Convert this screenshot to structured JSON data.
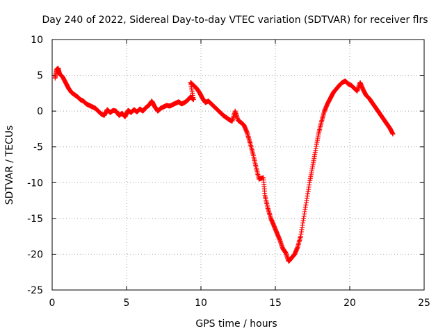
{
  "chart_data": {
    "type": "scatter",
    "title": "Day 240 of 2022, Sidereal Day-to-day VTEC variation (SDTVAR) for receiver flrs",
    "xlabel": "GPS time / hours",
    "ylabel": "SDTVAR / TECUs",
    "xlim": [
      0,
      25
    ],
    "ylim": [
      -25,
      10
    ],
    "x_ticks": [
      0,
      5,
      10,
      15,
      20,
      25
    ],
    "y_ticks": [
      -25,
      -20,
      -15,
      -10,
      -5,
      0,
      5,
      10
    ],
    "x_tick_labels": [
      "0",
      "5",
      "10",
      "15",
      "20",
      "25"
    ],
    "y_tick_labels": [
      "-25",
      "-20",
      "-15",
      "-10",
      "-5",
      "0",
      "5",
      "10"
    ],
    "grid": true,
    "marker": "plus",
    "color": "#ff0000",
    "series": [
      {
        "name": "flrs",
        "points": [
          [
            0.2,
            4.6
          ],
          [
            0.3,
            5.8
          ],
          [
            0.4,
            6.0
          ],
          [
            0.5,
            5.2
          ],
          [
            0.7,
            4.8
          ],
          [
            0.9,
            4.0
          ],
          [
            1.1,
            3.2
          ],
          [
            1.3,
            2.6
          ],
          [
            1.5,
            2.3
          ],
          [
            1.7,
            2.0
          ],
          [
            1.9,
            1.6
          ],
          [
            2.1,
            1.4
          ],
          [
            2.3,
            1.0
          ],
          [
            2.5,
            0.8
          ],
          [
            2.7,
            0.6
          ],
          [
            2.9,
            0.4
          ],
          [
            3.1,
            0.0
          ],
          [
            3.3,
            -0.4
          ],
          [
            3.5,
            -0.6
          ],
          [
            3.7,
            0.2
          ],
          [
            3.9,
            -0.2
          ],
          [
            4.1,
            0.1
          ],
          [
            4.3,
            0.0
          ],
          [
            4.5,
            -0.6
          ],
          [
            4.7,
            -0.3
          ],
          [
            4.9,
            -0.8
          ],
          [
            5.1,
            0.1
          ],
          [
            5.3,
            -0.2
          ],
          [
            5.5,
            0.2
          ],
          [
            5.7,
            -0.1
          ],
          [
            5.9,
            0.3
          ],
          [
            6.1,
            0.0
          ],
          [
            6.3,
            0.5
          ],
          [
            6.5,
            0.8
          ],
          [
            6.7,
            1.4
          ],
          [
            6.9,
            0.6
          ],
          [
            7.1,
            0.0
          ],
          [
            7.3,
            0.4
          ],
          [
            7.5,
            0.6
          ],
          [
            7.7,
            0.8
          ],
          [
            7.9,
            0.7
          ],
          [
            8.1,
            0.9
          ],
          [
            8.3,
            1.1
          ],
          [
            8.5,
            1.3
          ],
          [
            8.7,
            1.0
          ],
          [
            8.9,
            1.2
          ],
          [
            9.1,
            1.5
          ],
          [
            9.3,
            2.0
          ],
          [
            9.5,
            1.6
          ],
          [
            9.3,
            4.0
          ],
          [
            9.5,
            3.6
          ],
          [
            9.7,
            3.2
          ],
          [
            9.9,
            2.6
          ],
          [
            10.1,
            1.8
          ],
          [
            10.3,
            1.2
          ],
          [
            10.5,
            1.4
          ],
          [
            10.7,
            1.0
          ],
          [
            10.9,
            0.6
          ],
          [
            11.1,
            0.2
          ],
          [
            11.3,
            -0.2
          ],
          [
            11.5,
            -0.6
          ],
          [
            11.7,
            -0.9
          ],
          [
            11.9,
            -1.2
          ],
          [
            12.1,
            -1.4
          ],
          [
            12.3,
            0.0
          ],
          [
            12.5,
            -1.3
          ],
          [
            12.7,
            -1.6
          ],
          [
            12.9,
            -2.0
          ],
          [
            13.1,
            -3.0
          ],
          [
            13.3,
            -4.4
          ],
          [
            13.5,
            -6.0
          ],
          [
            13.7,
            -7.8
          ],
          [
            13.9,
            -9.5
          ],
          [
            14.2,
            -9.3
          ],
          [
            14.3,
            -11.8
          ],
          [
            14.5,
            -13.6
          ],
          [
            14.7,
            -15.0
          ],
          [
            14.9,
            -16.0
          ],
          [
            15.1,
            -17.0
          ],
          [
            15.3,
            -18.0
          ],
          [
            15.5,
            -19.2
          ],
          [
            15.7,
            -19.8
          ],
          [
            15.9,
            -21.0
          ],
          [
            16.1,
            -20.5
          ],
          [
            16.3,
            -20.0
          ],
          [
            16.5,
            -19.0
          ],
          [
            16.7,
            -17.5
          ],
          [
            16.9,
            -15.0
          ],
          [
            17.1,
            -12.5
          ],
          [
            17.3,
            -10.0
          ],
          [
            17.5,
            -7.8
          ],
          [
            17.7,
            -5.5
          ],
          [
            17.9,
            -3.2
          ],
          [
            18.1,
            -1.5
          ],
          [
            18.3,
            0.0
          ],
          [
            18.5,
            1.0
          ],
          [
            18.7,
            1.8
          ],
          [
            18.9,
            2.6
          ],
          [
            19.1,
            3.1
          ],
          [
            19.3,
            3.6
          ],
          [
            19.5,
            4.0
          ],
          [
            19.7,
            4.2
          ],
          [
            19.9,
            3.8
          ],
          [
            20.1,
            3.6
          ],
          [
            20.3,
            3.2
          ],
          [
            20.5,
            2.8
          ],
          [
            20.7,
            4.0
          ],
          [
            20.9,
            3.0
          ],
          [
            21.1,
            2.2
          ],
          [
            21.3,
            1.8
          ],
          [
            21.5,
            1.2
          ],
          [
            21.7,
            0.6
          ],
          [
            21.9,
            0.0
          ],
          [
            22.1,
            -0.6
          ],
          [
            22.3,
            -1.2
          ],
          [
            22.5,
            -1.8
          ],
          [
            22.7,
            -2.4
          ],
          [
            22.9,
            -3.2
          ]
        ]
      }
    ]
  }
}
